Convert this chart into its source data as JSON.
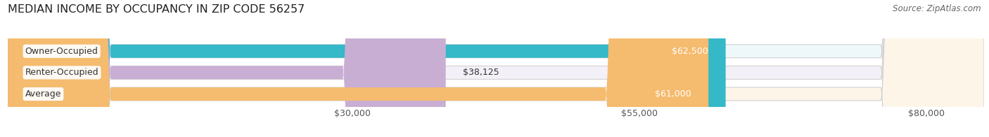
{
  "title": "MEDIAN INCOME BY OCCUPANCY IN ZIP CODE 56257",
  "source": "Source: ZipAtlas.com",
  "categories": [
    "Owner-Occupied",
    "Renter-Occupied",
    "Average"
  ],
  "values": [
    62500,
    38125,
    61000
  ],
  "bar_colors": [
    "#35b8c8",
    "#c9aed4",
    "#f5bb6e"
  ],
  "bar_background_colors": [
    "#eef8fa",
    "#f4f0f8",
    "#fdf5e8"
  ],
  "value_labels": [
    "$62,500",
    "$38,125",
    "$61,000"
  ],
  "value_label_colors": [
    "white",
    "black",
    "white"
  ],
  "xlim": [
    0,
    85000
  ],
  "xticks": [
    30000,
    55000,
    80000
  ],
  "xtick_labels": [
    "$30,000",
    "$55,000",
    "$80,000"
  ],
  "title_fontsize": 11.5,
  "source_fontsize": 8.5,
  "label_fontsize": 9,
  "bar_height": 0.62,
  "background_color": "#ffffff",
  "grid_color": "#cccccc",
  "bar_edge_color": "#d0d0d0"
}
